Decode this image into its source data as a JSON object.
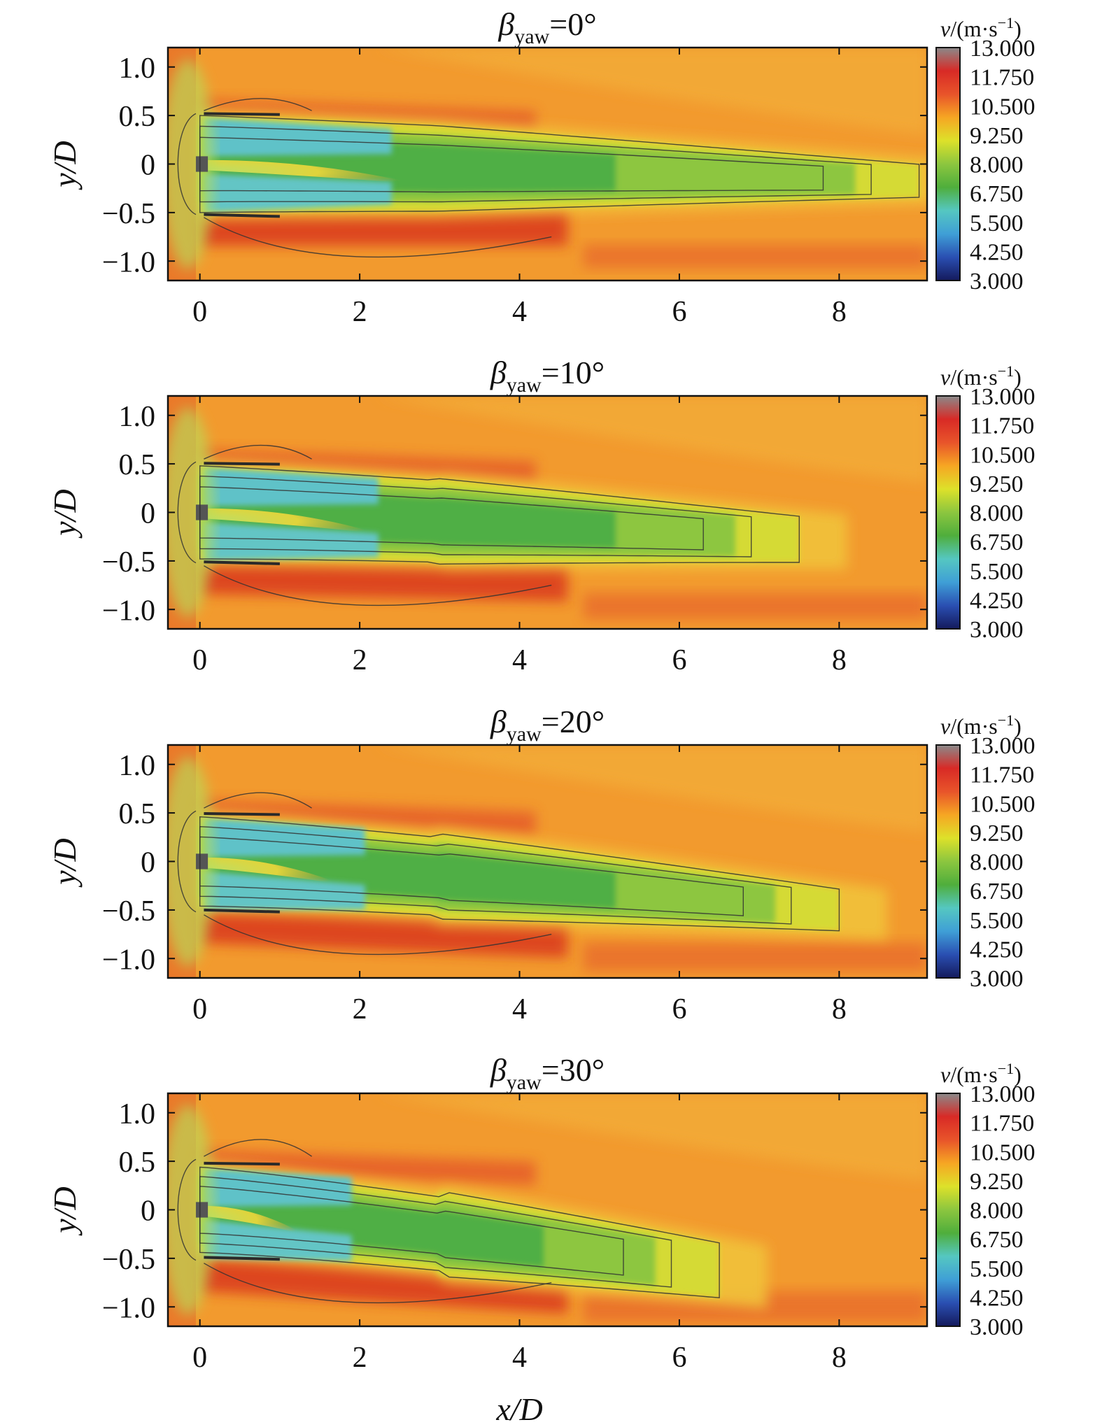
{
  "chart_data": {
    "type": "heatmap",
    "xlabel": "x/D",
    "ylabel": "y/D",
    "xlim": [
      -0.4,
      9.1
    ],
    "ylim": [
      -1.2,
      1.2
    ],
    "x_ticks": [
      "0",
      "2",
      "4",
      "6",
      "8"
    ],
    "x_tick_values": [
      0,
      2,
      4,
      6,
      8
    ],
    "y_ticks": [
      "1.0",
      "0.5",
      "0",
      "−0.5",
      "−1.0"
    ],
    "y_tick_values": [
      1.0,
      0.5,
      0,
      -0.5,
      -1.0
    ],
    "colorbar": {
      "label_var": "v",
      "label_unit": "/(m·s",
      "label_exp": "−1",
      "label_close": ")",
      "ticks": [
        "13.000",
        "11.750",
        "10.500",
        "9.250",
        "8.000",
        "6.750",
        "5.500",
        "4.250",
        "3.000"
      ],
      "tick_values": [
        13.0,
        11.75,
        10.5,
        9.25,
        8.0,
        6.75,
        5.5,
        4.25,
        3.0
      ],
      "range": [
        3.0,
        13.0
      ],
      "colors": [
        "#141a5c",
        "#2a4fb2",
        "#3f9fd6",
        "#55c7c1",
        "#4fae3c",
        "#8cc63f",
        "#dde12a",
        "#f6a623",
        "#e8542a",
        "#d82a26",
        "#8a8a8a"
      ]
    },
    "panels": [
      {
        "title_sym": "β",
        "title_sub": "yaw",
        "title_eq": "=0°",
        "yaw_deg": 0,
        "wake_center_y_at_x8": -0.15,
        "wake_end_x": 9.0
      },
      {
        "title_sym": "β",
        "title_sub": "yaw",
        "title_eq": "=10°",
        "yaw_deg": 10,
        "wake_center_y_at_x8": -0.3,
        "wake_end_x": 7.5
      },
      {
        "title_sym": "β",
        "title_sub": "yaw",
        "title_eq": "=20°",
        "yaw_deg": 20,
        "wake_center_y_at_x8": -0.5,
        "wake_end_x": 8.0
      },
      {
        "title_sym": "β",
        "title_sub": "yaw",
        "title_eq": "=30°",
        "yaw_deg": 30,
        "wake_center_y_at_x8": -0.8,
        "wake_end_x": 6.5
      }
    ]
  }
}
